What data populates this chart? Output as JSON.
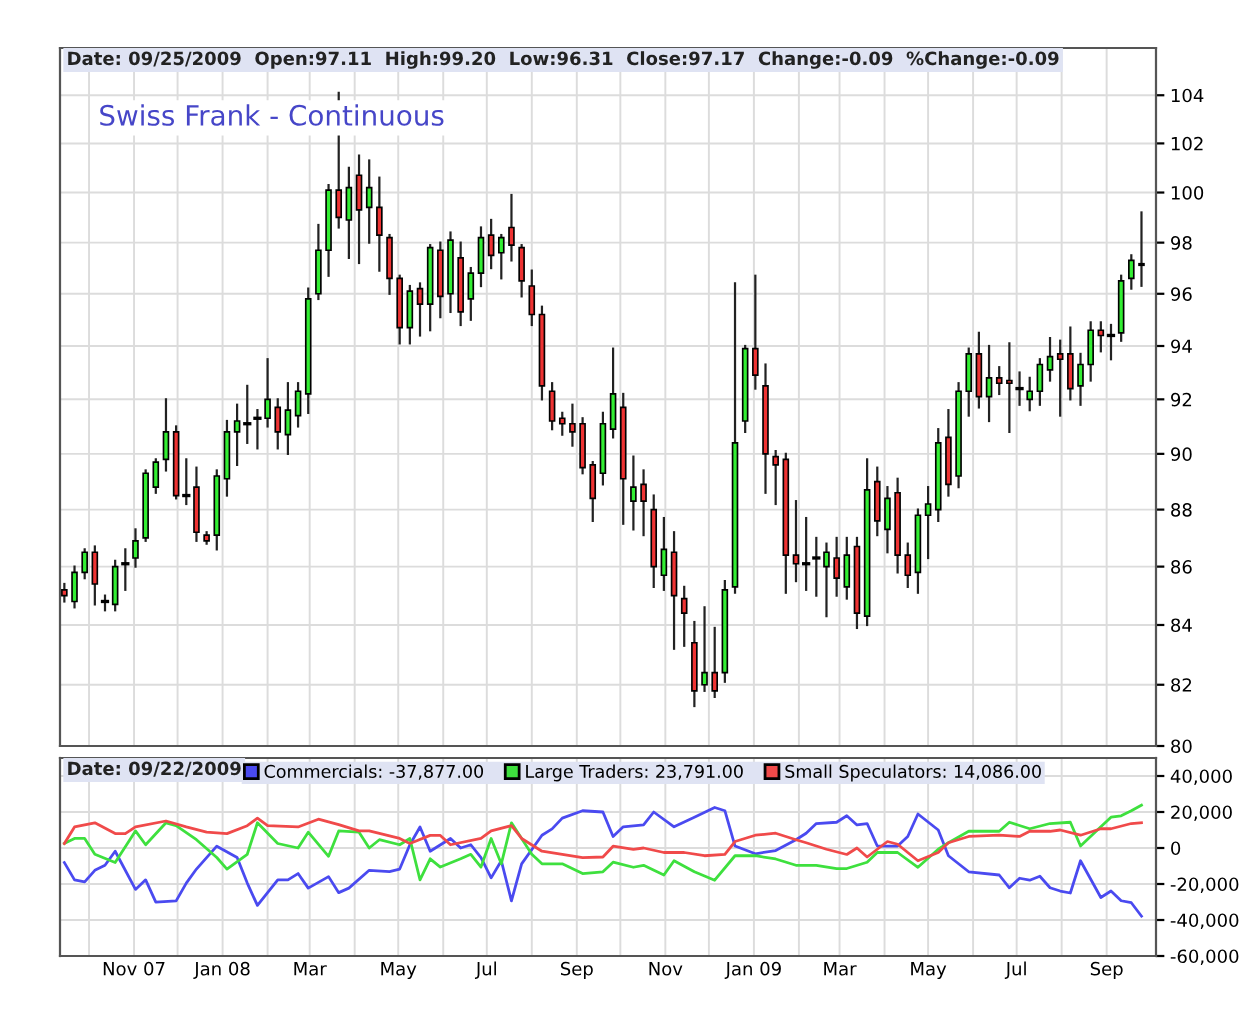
{
  "chart_data": [
    {
      "type": "candlestick",
      "title": "Swiss Frank - Continuous",
      "annotations": [
        "Date: 09/25/2009  Open:97.11  High:99.20  Low:96.31  Close:97.17  Change:-0.09  %Change:-0.09"
      ],
      "log": "y",
      "grid": true,
      "tick_labels": "y",
      "ylim": [
        80,
        106
      ],
      "yticks": [
        80,
        82,
        84,
        86,
        88,
        90,
        92,
        94,
        96,
        98,
        100,
        102,
        104
      ],
      "xlim": [
        "2007-09-11",
        "2009-10-05"
      ],
      "xticks": [
        {
          "value": "2007-10-01",
          "label": null
        },
        {
          "value": "2007-11-01",
          "label": null
        },
        {
          "value": "2007-12-01",
          "label": null
        },
        {
          "value": "2008-01-01",
          "label": null
        },
        {
          "value": "2008-02-01",
          "label": null
        },
        {
          "value": "2008-03-01",
          "label": null
        },
        {
          "value": "2008-04-01",
          "label": null
        },
        {
          "value": "2008-05-01",
          "label": null
        },
        {
          "value": "2008-06-01",
          "label": null
        },
        {
          "value": "2008-07-01",
          "label": null
        },
        {
          "value": "2008-08-01",
          "label": null
        },
        {
          "value": "2008-09-01",
          "label": null
        },
        {
          "value": "2008-10-01",
          "label": null
        },
        {
          "value": "2008-11-01",
          "label": null
        },
        {
          "value": "2008-12-01",
          "label": null
        },
        {
          "value": "2009-01-01",
          "label": null
        },
        {
          "value": "2009-02-01",
          "label": null
        },
        {
          "value": "2009-03-01",
          "label": null
        },
        {
          "value": "2009-04-01",
          "label": null
        },
        {
          "value": "2009-05-01",
          "label": null
        },
        {
          "value": "2009-06-01",
          "label": null
        },
        {
          "value": "2009-07-01",
          "label": null
        },
        {
          "value": "2009-08-01",
          "label": null
        },
        {
          "value": "2009-09-01",
          "label": null
        }
      ],
      "x": [
        "2007-09-14",
        "2007-09-21",
        "2007-09-28",
        "2007-10-05",
        "2007-10-12",
        "2007-10-19",
        "2007-10-26",
        "2007-11-02",
        "2007-11-09",
        "2007-11-16",
        "2007-11-23",
        "2007-11-30",
        "2007-12-07",
        "2007-12-14",
        "2007-12-21",
        "2007-12-28",
        "2008-01-04",
        "2008-01-11",
        "2008-01-18",
        "2008-01-25",
        "2008-02-01",
        "2008-02-08",
        "2008-02-15",
        "2008-02-22",
        "2008-02-29",
        "2008-03-07",
        "2008-03-14",
        "2008-03-21",
        "2008-03-28",
        "2008-04-04",
        "2008-04-11",
        "2008-04-18",
        "2008-04-25",
        "2008-05-02",
        "2008-05-09",
        "2008-05-16",
        "2008-05-23",
        "2008-05-30",
        "2008-06-06",
        "2008-06-13",
        "2008-06-20",
        "2008-06-27",
        "2008-07-04",
        "2008-07-11",
        "2008-07-18",
        "2008-07-25",
        "2008-08-01",
        "2008-08-08",
        "2008-08-15",
        "2008-08-22",
        "2008-08-29",
        "2008-09-05",
        "2008-09-12",
        "2008-09-19",
        "2008-09-26",
        "2008-10-03",
        "2008-10-10",
        "2008-10-17",
        "2008-10-24",
        "2008-10-31",
        "2008-11-07",
        "2008-11-14",
        "2008-11-21",
        "2008-11-28",
        "2008-12-05",
        "2008-12-12",
        "2008-12-19",
        "2008-12-26",
        "2009-01-02",
        "2009-01-09",
        "2009-01-16",
        "2009-01-23",
        "2009-01-30",
        "2009-02-06",
        "2009-02-13",
        "2009-02-20",
        "2009-02-27",
        "2009-03-06",
        "2009-03-13",
        "2009-03-20",
        "2009-03-27",
        "2009-04-03",
        "2009-04-10",
        "2009-04-17",
        "2009-04-24",
        "2009-05-01",
        "2009-05-08",
        "2009-05-15",
        "2009-05-22",
        "2009-05-29",
        "2009-06-05",
        "2009-06-12",
        "2009-06-19",
        "2009-06-26",
        "2009-07-03",
        "2009-07-10",
        "2009-07-17",
        "2009-07-24",
        "2009-07-31",
        "2009-08-07",
        "2009-08-14",
        "2009-08-21",
        "2009-08-28",
        "2009-09-04",
        "2009-09-11",
        "2009-09-18",
        "2009-09-25"
      ],
      "ohlc": [
        [
          85.2,
          85.4,
          84.8,
          85.0
        ],
        [
          84.8,
          86.0,
          84.6,
          85.8
        ],
        [
          85.8,
          86.6,
          85.6,
          86.5
        ],
        [
          86.5,
          86.7,
          84.7,
          85.4
        ],
        [
          84.8,
          85.0,
          84.5,
          84.8
        ],
        [
          84.7,
          86.2,
          84.5,
          86.0
        ],
        [
          86.1,
          86.6,
          85.2,
          86.1
        ],
        [
          86.3,
          87.3,
          86.0,
          86.9
        ],
        [
          87.0,
          89.4,
          86.9,
          89.3
        ],
        [
          88.8,
          89.8,
          88.6,
          89.7
        ],
        [
          89.8,
          92.0,
          89.4,
          90.8
        ],
        [
          90.8,
          91.0,
          88.4,
          88.5
        ],
        [
          88.5,
          89.8,
          88.2,
          88.5
        ],
        [
          88.8,
          89.5,
          86.9,
          87.2
        ],
        [
          87.1,
          87.2,
          86.8,
          86.9
        ],
        [
          87.1,
          89.4,
          86.6,
          89.2
        ],
        [
          89.1,
          91.2,
          88.5,
          90.8
        ],
        [
          90.8,
          91.8,
          89.6,
          91.2
        ],
        [
          91.1,
          92.5,
          90.4,
          91.1
        ],
        [
          91.3,
          91.6,
          90.2,
          91.3
        ],
        [
          91.3,
          93.5,
          91.0,
          92.0
        ],
        [
          91.7,
          92.0,
          90.2,
          90.8
        ],
        [
          90.7,
          92.6,
          90.0,
          91.6
        ],
        [
          91.4,
          92.6,
          91.0,
          92.3
        ],
        [
          92.2,
          96.2,
          91.5,
          95.8
        ],
        [
          96.0,
          98.7,
          95.8,
          97.7
        ],
        [
          97.7,
          100.3,
          96.7,
          100.1
        ],
        [
          100.1,
          104.1,
          98.6,
          99.0
        ],
        [
          98.9,
          101.0,
          97.4,
          100.2
        ],
        [
          100.7,
          101.5,
          97.2,
          99.3
        ],
        [
          99.4,
          101.3,
          98.0,
          100.2
        ],
        [
          99.4,
          100.6,
          96.9,
          98.3
        ],
        [
          98.2,
          98.3,
          96.0,
          96.6
        ],
        [
          96.6,
          96.7,
          94.1,
          94.7
        ],
        [
          94.7,
          96.3,
          94.1,
          96.1
        ],
        [
          96.2,
          96.4,
          94.4,
          95.6
        ],
        [
          95.6,
          97.9,
          94.6,
          97.8
        ],
        [
          97.7,
          98.0,
          95.1,
          95.9
        ],
        [
          96.0,
          98.4,
          95.3,
          98.1
        ],
        [
          97.4,
          98.0,
          94.8,
          95.3
        ],
        [
          95.8,
          97.0,
          95.0,
          96.8
        ],
        [
          96.8,
          98.6,
          96.3,
          98.2
        ],
        [
          98.3,
          98.9,
          97.0,
          97.5
        ],
        [
          97.6,
          98.3,
          96.6,
          98.2
        ],
        [
          98.6,
          99.9,
          97.3,
          97.9
        ],
        [
          97.8,
          97.9,
          95.9,
          96.5
        ],
        [
          96.3,
          96.9,
          94.8,
          95.2
        ],
        [
          95.2,
          95.5,
          92.0,
          92.5
        ],
        [
          92.3,
          92.6,
          90.9,
          91.2
        ],
        [
          91.3,
          91.5,
          90.7,
          91.1
        ],
        [
          91.1,
          91.8,
          90.3,
          90.8
        ],
        [
          91.1,
          91.3,
          89.3,
          89.5
        ],
        [
          89.6,
          89.7,
          87.6,
          88.4
        ],
        [
          89.3,
          91.5,
          88.9,
          91.1
        ],
        [
          90.9,
          93.9,
          90.6,
          92.2
        ],
        [
          91.7,
          92.2,
          87.5,
          89.1
        ],
        [
          88.3,
          89.9,
          87.3,
          88.8
        ],
        [
          88.9,
          89.4,
          87.1,
          88.3
        ],
        [
          88.0,
          88.5,
          85.3,
          86.0
        ],
        [
          85.7,
          87.7,
          85.2,
          86.6
        ],
        [
          86.5,
          87.2,
          83.2,
          85.0
        ],
        [
          84.9,
          85.3,
          83.3,
          84.4
        ],
        [
          83.4,
          84.1,
          81.3,
          81.8
        ],
        [
          82.0,
          84.6,
          81.8,
          82.4
        ],
        [
          82.4,
          83.9,
          81.6,
          81.8
        ],
        [
          82.4,
          85.5,
          82.1,
          85.2
        ],
        [
          85.3,
          96.4,
          85.1,
          90.4
        ],
        [
          91.2,
          94.0,
          90.8,
          93.9
        ],
        [
          93.9,
          96.7,
          92.4,
          92.9
        ],
        [
          92.5,
          93.3,
          88.6,
          90.0
        ],
        [
          89.9,
          90.1,
          88.2,
          89.6
        ],
        [
          89.8,
          90.0,
          85.1,
          86.4
        ],
        [
          86.4,
          88.3,
          85.5,
          86.1
        ],
        [
          86.1,
          87.7,
          85.2,
          86.1
        ],
        [
          86.3,
          87.0,
          85.0,
          86.3
        ],
        [
          86.0,
          86.8,
          84.3,
          86.5
        ],
        [
          86.3,
          87.0,
          85.0,
          85.6
        ],
        [
          85.3,
          87.0,
          84.9,
          86.4
        ],
        [
          86.7,
          87.0,
          83.9,
          84.4
        ],
        [
          84.3,
          89.8,
          84.0,
          88.7
        ],
        [
          89.0,
          89.5,
          87.1,
          87.6
        ],
        [
          87.3,
          88.8,
          86.5,
          88.4
        ],
        [
          88.6,
          89.1,
          85.8,
          86.4
        ],
        [
          86.4,
          86.8,
          85.3,
          85.7
        ],
        [
          85.8,
          88.0,
          85.1,
          87.8
        ],
        [
          87.8,
          88.8,
          86.3,
          88.2
        ],
        [
          88.0,
          90.9,
          87.6,
          90.4
        ],
        [
          90.6,
          91.6,
          88.5,
          88.9
        ],
        [
          89.2,
          92.6,
          88.8,
          92.3
        ],
        [
          92.3,
          93.9,
          91.4,
          93.7
        ],
        [
          93.7,
          94.5,
          91.7,
          92.1
        ],
        [
          92.1,
          94.0,
          91.2,
          92.8
        ],
        [
          92.8,
          93.2,
          92.2,
          92.6
        ],
        [
          92.7,
          94.1,
          90.8,
          92.6
        ],
        [
          92.4,
          93.0,
          91.8,
          92.4
        ],
        [
          92.0,
          92.8,
          91.6,
          92.3
        ],
        [
          92.3,
          93.5,
          91.8,
          93.3
        ],
        [
          93.1,
          94.3,
          92.7,
          93.6
        ],
        [
          93.7,
          94.2,
          91.4,
          93.5
        ],
        [
          93.7,
          94.7,
          92.0,
          92.4
        ],
        [
          92.5,
          93.7,
          91.8,
          93.3
        ],
        [
          93.3,
          94.9,
          92.7,
          94.6
        ],
        [
          94.6,
          94.9,
          93.8,
          94.4
        ],
        [
          94.4,
          94.8,
          93.5,
          94.4
        ],
        [
          94.5,
          96.7,
          94.2,
          96.5
        ],
        [
          96.6,
          97.5,
          96.2,
          97.3
        ],
        [
          97.11,
          99.2,
          96.31,
          97.17
        ]
      ]
    },
    {
      "type": "line",
      "annotations": [
        "Date: 09/22/2009"
      ],
      "grid": true,
      "legend": "top",
      "ylim": [
        -60000,
        50000
      ],
      "yticks": [
        {
          "value": -60000,
          "label": "-60,000"
        },
        {
          "value": -40000,
          "label": "-40,000"
        },
        {
          "value": -20000,
          "label": "-20,000"
        },
        0,
        {
          "value": 20000,
          "label": "20,000"
        },
        {
          "value": 40000,
          "label": "40,000"
        }
      ],
      "xlim": [
        "2007-09-11",
        "2009-10-05"
      ],
      "xticks": [
        {
          "value": "2007-10-01",
          "label": null
        },
        {
          "value": "2007-11-01",
          "label": "Nov 07"
        },
        {
          "value": "2007-12-01",
          "label": null
        },
        {
          "value": "2008-01-01",
          "label": "Jan 08"
        },
        {
          "value": "2008-02-01",
          "label": null
        },
        {
          "value": "2008-03-01",
          "label": "Mar"
        },
        {
          "value": "2008-04-01",
          "label": null
        },
        {
          "value": "2008-05-01",
          "label": "May"
        },
        {
          "value": "2008-06-01",
          "label": null
        },
        {
          "value": "2008-07-01",
          "label": "Jul"
        },
        {
          "value": "2008-08-01",
          "label": null
        },
        {
          "value": "2008-09-01",
          "label": "Sep"
        },
        {
          "value": "2008-10-01",
          "label": null
        },
        {
          "value": "2008-11-01",
          "label": "Nov"
        },
        {
          "value": "2008-12-01",
          "label": null
        },
        {
          "value": "2009-01-01",
          "label": "Jan 09"
        },
        {
          "value": "2009-02-01",
          "label": null
        },
        {
          "value": "2009-03-01",
          "label": "Mar"
        },
        {
          "value": "2009-04-01",
          "label": null
        },
        {
          "value": "2009-05-01",
          "label": "May"
        },
        {
          "value": "2009-06-01",
          "label": null
        },
        {
          "value": "2009-07-01",
          "label": "Jul"
        },
        {
          "value": "2009-08-01",
          "label": null
        },
        {
          "value": "2009-09-01",
          "label": "Sep"
        }
      ],
      "series": [
        {
          "name": "Commercials: -37,877.00",
          "color": "#4a4af0",
          "x": [
            "2007-09-14",
            "2007-09-21",
            "2007-09-28",
            "2007-10-05",
            "2007-10-12",
            "2007-10-19",
            "2007-11-02",
            "2007-11-09",
            "2007-11-16",
            "2007-11-30",
            "2007-12-07",
            "2007-12-14",
            "2007-12-28",
            "2008-01-11",
            "2008-01-18",
            "2008-01-25",
            "2008-02-08",
            "2008-02-15",
            "2008-02-22",
            "2008-02-29",
            "2008-03-14",
            "2008-03-21",
            "2008-03-28",
            "2008-04-11",
            "2008-04-25",
            "2008-05-02",
            "2008-05-09",
            "2008-05-16",
            "2008-05-23",
            "2008-06-06",
            "2008-06-13",
            "2008-06-20",
            "2008-06-27",
            "2008-07-04",
            "2008-07-11",
            "2008-07-18",
            "2008-07-25",
            "2008-08-08",
            "2008-08-15",
            "2008-08-22",
            "2008-09-05",
            "2008-09-19",
            "2008-09-26",
            "2008-10-03",
            "2008-10-17",
            "2008-10-24",
            "2008-11-07",
            "2008-11-21",
            "2008-12-05",
            "2008-12-12",
            "2008-12-19",
            "2009-01-02",
            "2009-01-16",
            "2009-01-30",
            "2009-02-06",
            "2009-02-13",
            "2009-02-27",
            "2009-03-06",
            "2009-03-13",
            "2009-03-20",
            "2009-03-27",
            "2009-04-10",
            "2009-04-17",
            "2009-04-24",
            "2009-05-08",
            "2009-05-15",
            "2009-05-29",
            "2009-06-19",
            "2009-06-26",
            "2009-07-03",
            "2009-07-10",
            "2009-07-17",
            "2009-07-24",
            "2009-07-31",
            "2009-08-07",
            "2009-08-14",
            "2009-08-28",
            "2009-09-04",
            "2009-09-11",
            "2009-09-18",
            "2009-09-25"
          ],
          "values": [
            -8100,
            -17700,
            -18800,
            -12400,
            -9600,
            -1800,
            -23000,
            -17700,
            -30100,
            -29400,
            -19500,
            -11700,
            1000,
            -5300,
            -19500,
            -31900,
            -17700,
            -17700,
            -14200,
            -22300,
            -15900,
            -24800,
            -22300,
            -12400,
            -13100,
            -11700,
            1800,
            11700,
            -1800,
            5300,
            0,
            1800,
            -5300,
            -16600,
            -7100,
            -29400,
            -8800,
            7100,
            10600,
            16600,
            20700,
            20000,
            6400,
            11800,
            12800,
            20000,
            11800,
            17100,
            22500,
            20700,
            1100,
            -3200,
            -1400,
            4600,
            8200,
            13600,
            14300,
            17900,
            12800,
            13600,
            1100,
            1100,
            6400,
            18900,
            10000,
            -4300,
            -13200,
            -15000,
            -22100,
            -16800,
            -17900,
            -15700,
            -22100,
            -23900,
            -25000,
            -7100,
            -27500,
            -23900,
            -29300,
            -30400,
            -37877
          ]
        },
        {
          "name": "Large Traders: 23,791.00",
          "color": "#3ee03e",
          "x": [
            "2007-09-14",
            "2007-09-21",
            "2007-09-28",
            "2007-10-05",
            "2007-10-19",
            "2007-11-02",
            "2007-11-09",
            "2007-11-23",
            "2007-11-30",
            "2007-12-14",
            "2007-12-28",
            "2008-01-04",
            "2008-01-18",
            "2008-01-25",
            "2008-02-08",
            "2008-02-22",
            "2008-02-29",
            "2008-03-14",
            "2008-03-21",
            "2008-04-04",
            "2008-04-11",
            "2008-04-18",
            "2008-05-02",
            "2008-05-09",
            "2008-05-16",
            "2008-05-23",
            "2008-05-30",
            "2008-06-13",
            "2008-06-20",
            "2008-06-27",
            "2008-07-04",
            "2008-07-11",
            "2008-07-18",
            "2008-08-01",
            "2008-08-08",
            "2008-08-22",
            "2008-09-05",
            "2008-09-19",
            "2008-09-26",
            "2008-10-10",
            "2008-10-17",
            "2008-10-31",
            "2008-11-07",
            "2008-11-21",
            "2008-12-05",
            "2008-12-19",
            "2009-01-02",
            "2009-01-16",
            "2009-01-30",
            "2009-02-13",
            "2009-02-27",
            "2009-03-06",
            "2009-03-20",
            "2009-03-27",
            "2009-04-10",
            "2009-04-24",
            "2009-05-08",
            "2009-05-15",
            "2009-05-29",
            "2009-06-19",
            "2009-06-26",
            "2009-07-10",
            "2009-07-24",
            "2009-08-07",
            "2009-08-14",
            "2009-08-28",
            "2009-09-04",
            "2009-09-11",
            "2009-09-18",
            "2009-09-25"
          ],
          "values": [
            2500,
            5300,
            5300,
            -3500,
            -8100,
            9500,
            1800,
            14000,
            12400,
            4600,
            -5300,
            -11700,
            -3500,
            14000,
            2500,
            0,
            8800,
            -4600,
            9500,
            8800,
            0,
            4600,
            1800,
            5300,
            -17700,
            -6000,
            -10600,
            -6000,
            -3500,
            -10600,
            5300,
            -8800,
            14000,
            -3500,
            -8800,
            -8800,
            -14200,
            -13200,
            -7900,
            -10700,
            -9600,
            -15000,
            -7100,
            -13200,
            -17900,
            -4300,
            -4300,
            -6100,
            -9600,
            -9600,
            -11400,
            -11400,
            -7900,
            -2500,
            -2500,
            -10700,
            -700,
            2900,
            9300,
            9300,
            14300,
            10700,
            13600,
            14300,
            1100,
            11800,
            17100,
            17900,
            20700,
            23791
          ]
        },
        {
          "name": "Small Speculators: 14,086.00",
          "color": "#f04a4a",
          "x": [
            "2007-09-14",
            "2007-09-21",
            "2007-10-05",
            "2007-10-19",
            "2007-10-26",
            "2007-11-02",
            "2007-11-23",
            "2007-12-07",
            "2007-12-21",
            "2008-01-04",
            "2008-01-18",
            "2008-01-25",
            "2008-02-01",
            "2008-02-22",
            "2008-03-07",
            "2008-03-21",
            "2008-04-04",
            "2008-04-11",
            "2008-05-02",
            "2008-05-09",
            "2008-05-23",
            "2008-05-30",
            "2008-06-06",
            "2008-06-27",
            "2008-07-04",
            "2008-07-18",
            "2008-07-25",
            "2008-08-08",
            "2008-08-22",
            "2008-09-05",
            "2008-09-19",
            "2008-09-26",
            "2008-10-10",
            "2008-10-17",
            "2008-10-31",
            "2008-11-14",
            "2008-11-28",
            "2008-12-12",
            "2008-12-19",
            "2009-01-02",
            "2009-01-16",
            "2009-01-30",
            "2009-02-06",
            "2009-02-20",
            "2009-03-06",
            "2009-03-13",
            "2009-03-20",
            "2009-04-03",
            "2009-04-10",
            "2009-04-24",
            "2009-05-08",
            "2009-05-15",
            "2009-05-29",
            "2009-06-19",
            "2009-07-03",
            "2009-07-10",
            "2009-07-24",
            "2009-07-31",
            "2009-08-14",
            "2009-08-28",
            "2009-09-04",
            "2009-09-18",
            "2009-09-25"
          ],
          "values": [
            2500,
            11700,
            14000,
            8000,
            8000,
            11700,
            15000,
            11700,
            8800,
            8000,
            12400,
            16600,
            12400,
            11700,
            16000,
            13000,
            9500,
            9500,
            5300,
            2500,
            7000,
            7000,
            1800,
            5300,
            9500,
            12400,
            5300,
            -1800,
            -3500,
            -5300,
            -5000,
            1000,
            -700,
            0,
            -2500,
            -2500,
            -4300,
            -3600,
            3600,
            7100,
            8200,
            4600,
            2900,
            -700,
            -3600,
            0,
            -5000,
            3600,
            2100,
            -7100,
            -2500,
            2900,
            6400,
            7100,
            6400,
            9300,
            9300,
            10000,
            7100,
            10700,
            10700,
            13600,
            14086
          ]
        }
      ]
    }
  ]
}
